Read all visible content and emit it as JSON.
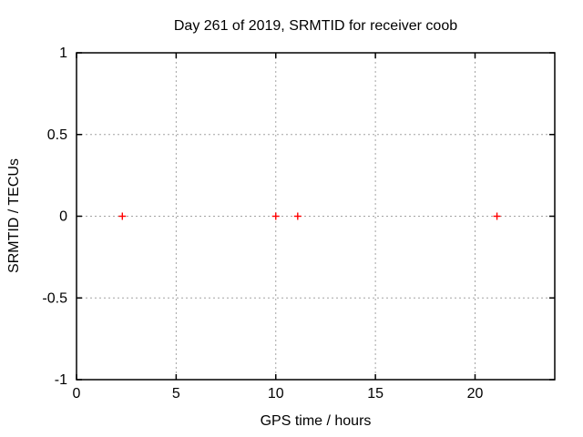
{
  "figure": {
    "background": "#ffffff",
    "text_color": "#000000"
  },
  "chart_data": {
    "type": "scatter",
    "title": "Day 261 of 2019, SRMTID for receiver coob",
    "xlabel": "GPS time / hours",
    "ylabel": "SRMTID / TECUs",
    "xlim": [
      0,
      24
    ],
    "ylim": [
      -1,
      1
    ],
    "xticks": [
      0,
      5,
      10,
      15,
      20
    ],
    "xtick_labels": [
      "0",
      "5",
      "10",
      "15",
      "20"
    ],
    "yticks": [
      1,
      0.5,
      0,
      -0.5,
      -1
    ],
    "ytick_labels": [
      "1",
      "0.5",
      "0",
      "-0.5",
      "-1"
    ],
    "grid": true,
    "grid_color": "#a3a3a3",
    "border_color": "#000000",
    "legend": "none",
    "series": [
      {
        "name": "SRMTID",
        "marker": "plus",
        "color": "#ff0000",
        "points": [
          {
            "x": 2.3,
            "y": 0
          },
          {
            "x": 10.0,
            "y": 0
          },
          {
            "x": 11.1,
            "y": 0
          },
          {
            "x": 21.1,
            "y": 0
          }
        ]
      }
    ]
  }
}
